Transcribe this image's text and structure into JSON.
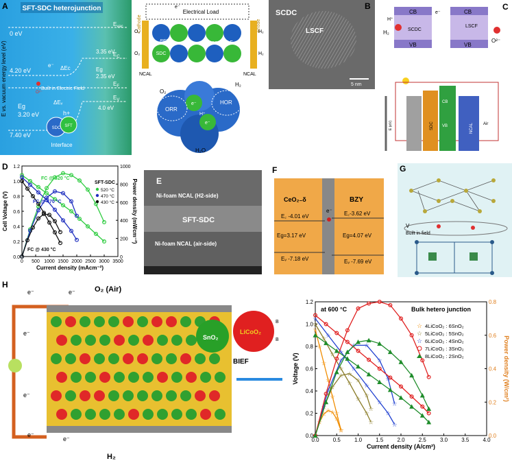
{
  "panels": {
    "A": {
      "label": "A",
      "title": "SFT-SDC heterojunction",
      "y_axis": "E vs. vacuum energy level (eV)",
      "levels": {
        "zero": "0 eV",
        "e420": "4.20 eV",
        "e740": "7.40 eV",
        "evac": "E",
        "evac_sub": "vac",
        "ec": "E",
        "ec_sub": "C",
        "ef": "E",
        "ef_sub": "F",
        "ev": "E",
        "ev_sub": "V",
        "e335": "3.35 eV",
        "e400": "4.0 eV"
      },
      "eg_left": "Eg",
      "eg_left_val": "3.20 eV",
      "eg_right": "Eg",
      "eg_right_val": "2.35 eV",
      "dEc": "ΔEc",
      "dEv": "ΔEᵥ",
      "field": "Built in Electric Field",
      "e_minus": "e⁻",
      "h_plus": "h+",
      "o2": "O²⁻",
      "sdc": "SDC",
      "sft": "SFT",
      "interface": "Interface"
    },
    "A2": {
      "cathode": "Cathode",
      "anode": "Anode",
      "load": "Electrical Load",
      "e_minus": "e⁻",
      "bef": "BEF",
      "sdc": "SDC",
      "inplane": "In-panel E.F",
      "ncal_l": "NCAL",
      "ncal_r": "NCAL",
      "o2_l": "O₂",
      "h2_r": "H₂",
      "o2b": "O₂",
      "h2b": "H₂",
      "o2g": "O₂",
      "h2g": "H₂",
      "orr": "ORR",
      "hor": "HOR",
      "h2o": "H₂O",
      "hplus": "H⁺",
      "eg1": "e⁻",
      "eg2": "e⁻"
    },
    "B": {
      "label": "B",
      "sdc": "SCDC",
      "lscf": "LSCF",
      "scale": "5 nm"
    },
    "C": {
      "label": "C",
      "cb1": "CB",
      "cb2": "CB",
      "vb1": "VB",
      "vb2": "VB",
      "sdc": "SCDC",
      "lscf": "LSCF",
      "h2": "H₂",
      "o2": "O²⁻",
      "hplus": "H⁺",
      "eminus": "e⁻",
      "sdc_layer": "SDC",
      "air": "Air",
      "ncal": "NCAL",
      "cb3": "CB",
      "vb3": "VB",
      "axis": "E (eV)"
    },
    "D": {
      "label": "D",
      "legend_title": "SFT-SDC",
      "ann_520": "FC @ 520 °C",
      "ann_470": "FC @ 470 °C",
      "ann_430": "FC @ 430 °C",
      "xlabel": "Current density (mAcm⁻²)",
      "ylabel_left": "Cell Voltage (V)",
      "ylabel_right": "Power density (mWcm⁻²)"
    },
    "E": {
      "label": "E",
      "top": "Ni-foam NCAL (H2-side)",
      "mid": "SFT-SDC",
      "bot": "Ni-foam NCAL (air-side)"
    },
    "F": {
      "label": "F",
      "left": "CeO₂₋δ",
      "right": "BZY",
      "ec_l": "E꜀ -4.01 eV",
      "eg_l": "Eg=3.17 eV",
      "ev_l": "Eᵥ -7.18 eV",
      "ec_r": "E꜀-3.62 eV",
      "eg_r": "Eg=4.07 eV",
      "ev_r": "Eᵥ -7.69 eV",
      "e": "e⁻"
    },
    "G": {
      "label": "G",
      "field": "Built in field",
      "v": "V"
    },
    "H": {
      "label": "H",
      "o2": "O₂ (Air)",
      "h2": "H₂",
      "e": "e⁻",
      "hplus": "H⁺",
      "sno2": "SnO₂",
      "licoo2": "LiCoO₂",
      "bief": "BIEF",
      "b": "B"
    }
  },
  "chart_data": [
    {
      "type": "line",
      "panel": "D",
      "xlabel": "Current density (mAcm⁻²)",
      "ylabel": "Cell Voltage (V)",
      "y2label": "Power density (mWcm⁻²)",
      "xlim": [
        0,
        3500
      ],
      "ylim": [
        0,
        1.2
      ],
      "y2lim": [
        0,
        1000
      ],
      "xticks": [
        0,
        500,
        1000,
        1500,
        2000,
        2500,
        3000,
        3500
      ],
      "yticks": [
        0.0,
        0.2,
        0.4,
        0.6,
        0.8,
        1.0,
        1.2
      ],
      "y2ticks": [
        0,
        200,
        400,
        600,
        800,
        1000
      ],
      "series": [
        {
          "name": "520 °C",
          "color": "#2ecc40",
          "iv": [
            [
              0,
              1.08
            ],
            [
              300,
              1.0
            ],
            [
              600,
              0.92
            ],
            [
              900,
              0.84
            ],
            [
              1200,
              0.76
            ],
            [
              1500,
              0.68
            ],
            [
              1800,
              0.6
            ],
            [
              2100,
              0.5
            ],
            [
              2400,
              0.4
            ],
            [
              2700,
              0.3
            ],
            [
              3000,
              0.2
            ]
          ],
          "power": [
            [
              0,
              0
            ],
            [
              300,
              300
            ],
            [
              600,
              552
            ],
            [
              900,
              756
            ],
            [
              1200,
              875
            ],
            [
              1500,
              920
            ],
            [
              1800,
              900
            ],
            [
              2100,
              840
            ],
            [
              2400,
              740
            ],
            [
              2700,
              580
            ],
            [
              3000,
              380
            ]
          ]
        },
        {
          "name": "470 °C",
          "color": "#1f2fbf",
          "iv": [
            [
              0,
              1.05
            ],
            [
              300,
              0.95
            ],
            [
              600,
              0.85
            ],
            [
              900,
              0.75
            ],
            [
              1200,
              0.62
            ],
            [
              1500,
              0.48
            ],
            [
              1800,
              0.34
            ],
            [
              2000,
              0.22
            ]
          ],
          "power": [
            [
              0,
              0
            ],
            [
              300,
              285
            ],
            [
              600,
              510
            ],
            [
              900,
              650
            ],
            [
              1200,
              720
            ],
            [
              1500,
              700
            ],
            [
              1800,
              610
            ],
            [
              2000,
              450
            ]
          ]
        },
        {
          "name": "430 °C",
          "color": "#111111",
          "iv": [
            [
              0,
              1.0
            ],
            [
              200,
              0.9
            ],
            [
              400,
              0.8
            ],
            [
              600,
              0.7
            ],
            [
              800,
              0.58
            ],
            [
              1000,
              0.45
            ],
            [
              1200,
              0.32
            ],
            [
              1400,
              0.18
            ]
          ],
          "power": [
            [
              0,
              0
            ],
            [
              200,
              180
            ],
            [
              400,
              320
            ],
            [
              600,
              420
            ],
            [
              800,
              470
            ],
            [
              1000,
              460
            ],
            [
              1200,
              390
            ],
            [
              1400,
              270
            ]
          ]
        }
      ]
    },
    {
      "type": "line",
      "panel": "H",
      "annotation": "at 600 °C",
      "title": "Bulk hetero junction",
      "xlabel": "Current density (A/cm²)",
      "ylabel": "Voltage (V)",
      "y2label": "Power density (W/cm²)",
      "xlim": [
        0,
        4.0
      ],
      "ylim": [
        0,
        1.2
      ],
      "y2lim": [
        0,
        0.8
      ],
      "xticks": [
        0.0,
        0.5,
        1.0,
        1.5,
        2.0,
        2.5,
        3.0,
        3.5,
        4.0
      ],
      "yticks": [
        0.0,
        0.2,
        0.4,
        0.6,
        0.8,
        1.0,
        1.2
      ],
      "y2ticks": [
        0.0,
        0.2,
        0.4,
        0.6,
        0.8
      ],
      "series": [
        {
          "name": "4LiCoO₂ : 6SnO₂",
          "color": "#f08c00",
          "marker": "star",
          "iv": [
            [
              0,
              0.95
            ],
            [
              0.1,
              0.8
            ],
            [
              0.2,
              0.65
            ],
            [
              0.3,
              0.5
            ],
            [
              0.4,
              0.35
            ],
            [
              0.5,
              0.2
            ],
            [
              0.6,
              0.05
            ]
          ],
          "power": [
            [
              0,
              0
            ],
            [
              0.1,
              0.08
            ],
            [
              0.2,
              0.13
            ],
            [
              0.3,
              0.15
            ],
            [
              0.4,
              0.14
            ],
            [
              0.5,
              0.1
            ],
            [
              0.6,
              0.03
            ]
          ]
        },
        {
          "name": "5LiCoO₂ : 5SnO₂",
          "color": "#8b7d2a",
          "marker": "star",
          "iv": [
            [
              0,
              1.0
            ],
            [
              0.2,
              0.87
            ],
            [
              0.4,
              0.73
            ],
            [
              0.6,
              0.6
            ],
            [
              0.8,
              0.47
            ],
            [
              1.0,
              0.33
            ],
            [
              1.2,
              0.2
            ],
            [
              1.3,
              0.12
            ]
          ],
          "power": [
            [
              0,
              0
            ],
            [
              0.2,
              0.17
            ],
            [
              0.4,
              0.29
            ],
            [
              0.6,
              0.36
            ],
            [
              0.8,
              0.37
            ],
            [
              1.0,
              0.33
            ],
            [
              1.2,
              0.24
            ],
            [
              1.3,
              0.16
            ]
          ]
        },
        {
          "name": "6LiCoO₂ : 4SnO₂",
          "color": "#2040d0",
          "marker": "star",
          "iv": [
            [
              0,
              1.05
            ],
            [
              0.3,
              0.9
            ],
            [
              0.6,
              0.75
            ],
            [
              0.9,
              0.6
            ],
            [
              1.2,
              0.45
            ],
            [
              1.5,
              0.3
            ],
            [
              1.7,
              0.2
            ],
            [
              1.85,
              0.1
            ]
          ],
          "power": [
            [
              0,
              0
            ],
            [
              0.3,
              0.27
            ],
            [
              0.6,
              0.45
            ],
            [
              0.9,
              0.54
            ],
            [
              1.2,
              0.54
            ],
            [
              1.5,
              0.45
            ],
            [
              1.7,
              0.34
            ],
            [
              1.85,
              0.19
            ]
          ]
        },
        {
          "name": "7LiCoO₂ : 3SnO₂",
          "color": "#e02020",
          "marker": "circle",
          "iv": [
            [
              0,
              1.08
            ],
            [
              0.25,
              1.0
            ],
            [
              0.5,
              0.92
            ],
            [
              0.75,
              0.84
            ],
            [
              1.0,
              0.76
            ],
            [
              1.25,
              0.68
            ],
            [
              1.5,
              0.6
            ],
            [
              1.75,
              0.52
            ],
            [
              2.0,
              0.44
            ],
            [
              2.25,
              0.35
            ],
            [
              2.5,
              0.26
            ],
            [
              2.65,
              0.2
            ]
          ],
          "power": [
            [
              0,
              0
            ],
            [
              0.25,
              0.25
            ],
            [
              0.5,
              0.46
            ],
            [
              0.75,
              0.63
            ],
            [
              1.0,
              0.76
            ],
            [
              1.25,
              0.79
            ],
            [
              1.5,
              0.8
            ],
            [
              1.75,
              0.78
            ],
            [
              2.0,
              0.7
            ],
            [
              2.25,
              0.6
            ],
            [
              2.5,
              0.45
            ],
            [
              2.65,
              0.35
            ]
          ]
        },
        {
          "name": "8LiCoO₂ : 2SnO₂",
          "color": "#1e8c2a",
          "marker": "triangle",
          "iv": [
            [
              0,
              0.9
            ],
            [
              0.25,
              0.83
            ],
            [
              0.5,
              0.76
            ],
            [
              0.75,
              0.69
            ],
            [
              1.0,
              0.62
            ],
            [
              1.25,
              0.55
            ],
            [
              1.5,
              0.48
            ],
            [
              1.75,
              0.41
            ],
            [
              2.0,
              0.34
            ],
            [
              2.25,
              0.26
            ],
            [
              2.5,
              0.18
            ],
            [
              2.65,
              0.12
            ]
          ],
          "power": [
            [
              0,
              0
            ],
            [
              0.25,
              0.2
            ],
            [
              0.5,
              0.38
            ],
            [
              0.75,
              0.5
            ],
            [
              1.0,
              0.56
            ],
            [
              1.25,
              0.57
            ],
            [
              1.5,
              0.55
            ],
            [
              1.75,
              0.5
            ],
            [
              2.0,
              0.44
            ],
            [
              2.25,
              0.36
            ],
            [
              2.5,
              0.24
            ],
            [
              2.65,
              0.16
            ]
          ]
        }
      ]
    }
  ]
}
